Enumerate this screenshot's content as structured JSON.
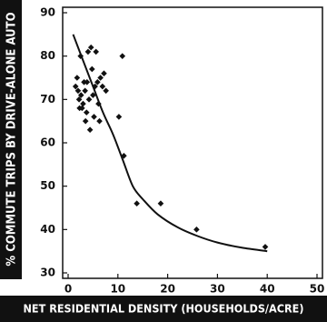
{
  "chart_data": {
    "type": "scatter",
    "title": "",
    "xlabel": "NET RESIDENTIAL DENSITY (HOUSEHOLDS/ACRE)",
    "ylabel": "% COMMUTE TRIPS BY DRIVE-ALONE AUTO",
    "xlim": [
      0,
      50
    ],
    "ylim": [
      30,
      90
    ],
    "x_ticks": [
      "0",
      "10",
      "20",
      "30",
      "40",
      "50"
    ],
    "y_ticks": [
      "30",
      "40",
      "50",
      "60",
      "70",
      "80",
      "90"
    ],
    "grid": false,
    "legend": "none",
    "points": [
      {
        "x": 1.5,
        "y": 73
      },
      {
        "x": 1.8,
        "y": 75
      },
      {
        "x": 2.0,
        "y": 72
      },
      {
        "x": 2.2,
        "y": 70
      },
      {
        "x": 2.3,
        "y": 68
      },
      {
        "x": 2.5,
        "y": 80
      },
      {
        "x": 2.6,
        "y": 71
      },
      {
        "x": 2.8,
        "y": 68
      },
      {
        "x": 3.0,
        "y": 69
      },
      {
        "x": 3.2,
        "y": 74
      },
      {
        "x": 3.4,
        "y": 72
      },
      {
        "x": 3.5,
        "y": 65
      },
      {
        "x": 3.7,
        "y": 67
      },
      {
        "x": 3.8,
        "y": 74
      },
      {
        "x": 4.0,
        "y": 81
      },
      {
        "x": 4.2,
        "y": 70
      },
      {
        "x": 4.4,
        "y": 63
      },
      {
        "x": 4.6,
        "y": 82
      },
      {
        "x": 4.8,
        "y": 77
      },
      {
        "x": 5.0,
        "y": 71
      },
      {
        "x": 5.2,
        "y": 66
      },
      {
        "x": 5.4,
        "y": 73
      },
      {
        "x": 5.6,
        "y": 81
      },
      {
        "x": 5.9,
        "y": 74
      },
      {
        "x": 6.1,
        "y": 69
      },
      {
        "x": 6.3,
        "y": 65
      },
      {
        "x": 6.5,
        "y": 75
      },
      {
        "x": 6.9,
        "y": 73
      },
      {
        "x": 7.2,
        "y": 76
      },
      {
        "x": 7.6,
        "y": 72
      },
      {
        "x": 10.2,
        "y": 66
      },
      {
        "x": 10.9,
        "y": 80
      },
      {
        "x": 11.2,
        "y": 57
      },
      {
        "x": 13.8,
        "y": 46
      },
      {
        "x": 18.6,
        "y": 46
      },
      {
        "x": 25.8,
        "y": 40
      },
      {
        "x": 39.6,
        "y": 36
      }
    ],
    "trend_line": [
      {
        "x": 1,
        "y": 85
      },
      {
        "x": 3,
        "y": 79
      },
      {
        "x": 5,
        "y": 73
      },
      {
        "x": 7,
        "y": 67
      },
      {
        "x": 9,
        "y": 62
      },
      {
        "x": 11,
        "y": 56
      },
      {
        "x": 13,
        "y": 50
      },
      {
        "x": 15,
        "y": 47
      },
      {
        "x": 18,
        "y": 43.5
      },
      {
        "x": 22,
        "y": 40.5
      },
      {
        "x": 26,
        "y": 38.5
      },
      {
        "x": 30,
        "y": 37
      },
      {
        "x": 35,
        "y": 35.8
      },
      {
        "x": 40,
        "y": 35
      }
    ],
    "colors": {
      "marker": "#111111",
      "line": "#111111",
      "title_bar": "#111111",
      "title_text": "#ffffff"
    }
  }
}
